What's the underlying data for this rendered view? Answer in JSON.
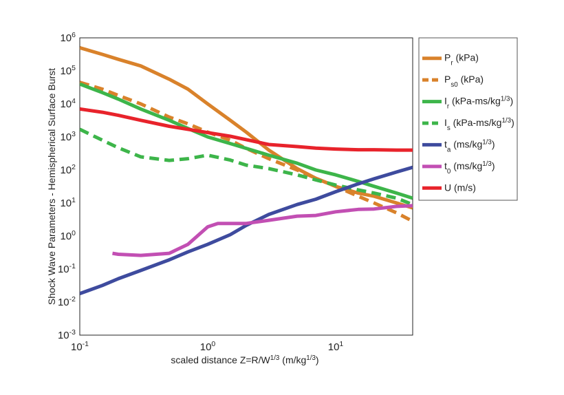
{
  "chart_data": {
    "type": "line",
    "log_x": true,
    "log_y": true,
    "grid": true,
    "minor_grid": true,
    "legend": "outside-right",
    "xlabel": "scaled distance Z=R/W^1/3 (m/kg^1/3)",
    "ylabel": "Shock Wave Parameters - Hemispherical Surface Burst",
    "xlim": [
      0.1,
      40
    ],
    "ylim": [
      0.001,
      1000000
    ],
    "xticks": [
      {
        "value": 0.1,
        "label": "10^-1"
      },
      {
        "value": 1,
        "label": "10^0"
      },
      {
        "value": 10,
        "label": "10^1"
      }
    ],
    "yticks": [
      {
        "value": 0.001,
        "label": "10^-3"
      },
      {
        "value": 0.01,
        "label": "10^-2"
      },
      {
        "value": 0.1,
        "label": "10^-1"
      },
      {
        "value": 1,
        "label": "10^0"
      },
      {
        "value": 10,
        "label": "10^1"
      },
      {
        "value": 100,
        "label": "10^2"
      },
      {
        "value": 1000,
        "label": "10^3"
      },
      {
        "value": 10000,
        "label": "10^4"
      },
      {
        "value": 100000,
        "label": "10^5"
      },
      {
        "value": 1000000,
        "label": "10^6"
      }
    ],
    "series": [
      {
        "name": "P_r (kPa)",
        "color": "#d9822b",
        "dashed": false,
        "x": [
          0.1,
          0.15,
          0.2,
          0.3,
          0.5,
          0.7,
          1,
          1.5,
          2,
          3,
          5,
          7,
          10,
          15,
          20,
          30,
          40
        ],
        "values": [
          500000,
          316000,
          224000,
          141000,
          56000,
          28000,
          10000,
          3200,
          1400,
          400,
          110,
          56,
          32,
          20,
          16,
          10,
          7.1
        ]
      },
      {
        "name": "P_s0 (kPa)",
        "color": "#d9822b",
        "dashed": true,
        "x": [
          0.1,
          0.15,
          0.2,
          0.3,
          0.5,
          0.7,
          1,
          1.5,
          2,
          3,
          5,
          7,
          10,
          15,
          20,
          30,
          40
        ],
        "values": [
          45000,
          28000,
          18000,
          10000,
          4000,
          2500,
          1400,
          800,
          450,
          220,
          100,
          56,
          32,
          16,
          10,
          5,
          2.8
        ]
      },
      {
        "name": "I_r (kPa-ms/kg^1/3)",
        "color": "#3db54a",
        "dashed": false,
        "x": [
          0.1,
          0.15,
          0.2,
          0.3,
          0.5,
          0.7,
          1,
          1.5,
          2,
          3,
          5,
          7,
          10,
          15,
          20,
          30,
          40
        ],
        "values": [
          40000,
          22000,
          14000,
          7000,
          3200,
          1800,
          1000,
          630,
          450,
          280,
          160,
          100,
          71,
          45,
          32,
          20,
          14
        ]
      },
      {
        "name": "I_s (kPa-ms/kg^1/3)",
        "color": "#3db54a",
        "dashed": true,
        "x": [
          0.1,
          0.15,
          0.2,
          0.3,
          0.5,
          0.7,
          1,
          1.5,
          2,
          3,
          5,
          7,
          10,
          15,
          20,
          30,
          40
        ],
        "values": [
          1700,
          800,
          470,
          250,
          195,
          220,
          280,
          200,
          140,
          110,
          71,
          50,
          35,
          25,
          20,
          14,
          9
        ]
      },
      {
        "name": "t_a (ms/kg^1/3)",
        "color": "#3e4b9e",
        "dashed": false,
        "x": [
          0.1,
          0.15,
          0.2,
          0.3,
          0.5,
          0.7,
          1,
          1.5,
          2,
          3,
          5,
          7,
          10,
          15,
          20,
          30,
          40
        ],
        "values": [
          0.018,
          0.032,
          0.051,
          0.091,
          0.19,
          0.33,
          0.56,
          1.1,
          2.1,
          4.5,
          9,
          13,
          22,
          38,
          54,
          87,
          120
        ]
      },
      {
        "name": "t_0 (ms/kg^1/3)",
        "color": "#c24fb3",
        "dashed": false,
        "x": [
          0.18,
          0.2,
          0.3,
          0.5,
          0.7,
          1,
          1.2,
          1.5,
          2,
          3,
          5,
          7,
          10,
          15,
          20,
          30,
          40
        ],
        "values": [
          0.3,
          0.28,
          0.26,
          0.3,
          0.56,
          1.9,
          2.4,
          2.4,
          2.4,
          3,
          4,
          4.2,
          5.4,
          6.4,
          6.6,
          7.9,
          8.3
        ]
      },
      {
        "name": "U (m/s)",
        "color": "#e8232b",
        "dashed": false,
        "x": [
          0.1,
          0.15,
          0.2,
          0.3,
          0.5,
          0.7,
          1,
          1.5,
          2,
          3,
          5,
          7,
          10,
          15,
          20,
          30,
          40
        ],
        "values": [
          7000,
          5600,
          4500,
          3200,
          2100,
          1700,
          1350,
          1050,
          830,
          590,
          510,
          460,
          430,
          410,
          410,
          400,
          400
        ]
      }
    ]
  }
}
